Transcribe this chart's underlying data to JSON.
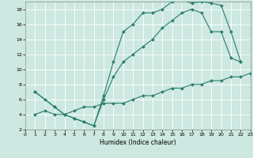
{
  "xlabel": "Humidex (Indice chaleur)",
  "xlim": [
    0,
    23
  ],
  "ylim": [
    2,
    19
  ],
  "xticks": [
    0,
    1,
    2,
    3,
    4,
    5,
    6,
    7,
    8,
    9,
    10,
    11,
    12,
    13,
    14,
    15,
    16,
    17,
    18,
    19,
    20,
    21,
    22,
    23
  ],
  "yticks": [
    2,
    4,
    6,
    8,
    10,
    12,
    14,
    16,
    18
  ],
  "bg_color": "#cce8e0",
  "grid_color": "#b0d4cc",
  "line_color": "#2a7d6b",
  "line1_x": [
    1,
    2,
    3,
    4,
    5,
    6,
    7,
    8,
    9,
    10,
    11,
    12,
    13,
    14,
    15,
    16,
    17,
    18,
    19,
    20,
    21,
    22
  ],
  "line1_y": [
    7,
    6,
    5,
    4,
    3.5,
    3,
    2.5,
    6.5,
    11,
    15,
    16,
    17.5,
    17.5,
    18,
    19,
    19.2,
    18.8,
    19,
    18.8,
    18.5,
    15,
    11
  ],
  "line2_x": [
    1,
    3,
    4,
    5,
    6,
    7,
    8,
    9,
    10,
    11,
    12,
    13,
    14,
    15,
    16,
    17,
    18,
    19,
    20,
    21,
    22
  ],
  "line2_y": [
    7,
    5,
    4,
    3.5,
    3,
    2.5,
    6,
    9,
    11,
    12,
    13,
    14,
    15.5,
    16.5,
    17.5,
    18,
    17.5,
    15,
    15,
    11.5,
    11
  ],
  "line3_x": [
    1,
    2,
    3,
    4,
    5,
    6,
    7,
    8,
    9,
    10,
    11,
    12,
    13,
    14,
    15,
    16,
    17,
    18,
    19,
    20,
    21,
    22,
    23
  ],
  "line3_y": [
    4,
    4.5,
    4,
    4,
    4.5,
    5,
    5,
    5.5,
    5.5,
    5.5,
    6,
    6.5,
    6.5,
    7,
    7.5,
    7.5,
    8,
    8,
    8.5,
    8.5,
    9,
    9,
    9.5
  ]
}
